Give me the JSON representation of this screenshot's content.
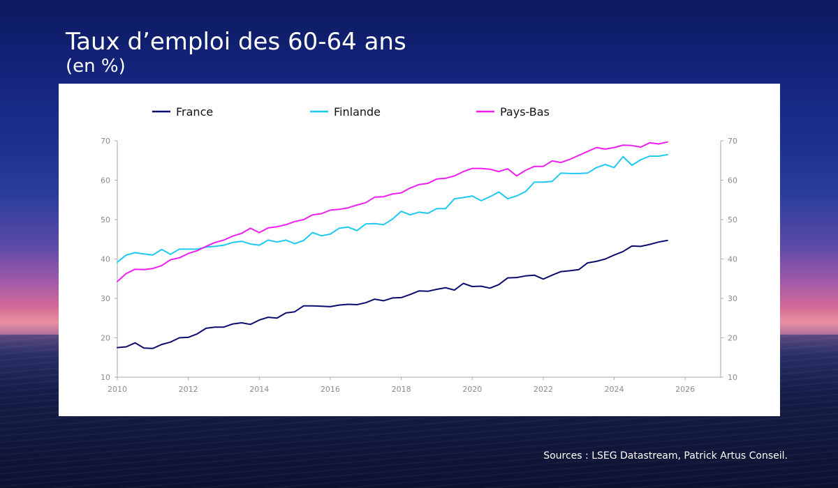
{
  "header": {
    "title": "Taux d’emploi des 60-64 ans",
    "subtitle": "(en %)"
  },
  "footer": {
    "source": "Sources : LSEG Datastream, Patrick Artus Conseil."
  },
  "colors": {
    "France": "#0b0b6e",
    "Finlande": "#1ec8f0",
    "Pays-Bas": "#ee1ef0",
    "axis": "#aaaaaa"
  },
  "chart_data": {
    "type": "line",
    "title": "",
    "xlabel": "",
    "ylabel": "",
    "xlim": [
      2010,
      2027
    ],
    "ylim": [
      10,
      70
    ],
    "x_ticks": [
      2010,
      2012,
      2014,
      2016,
      2018,
      2020,
      2022,
      2024,
      2026
    ],
    "y_ticks": [
      10,
      20,
      30,
      40,
      50,
      60,
      70
    ],
    "y_axis_right": true,
    "grid": false,
    "legend_position": "top",
    "x": [
      2010.0,
      2010.25,
      2010.5,
      2010.75,
      2011.0,
      2011.25,
      2011.5,
      2011.75,
      2012.0,
      2012.25,
      2012.5,
      2012.75,
      2013.0,
      2013.25,
      2013.5,
      2013.75,
      2014.0,
      2014.25,
      2014.5,
      2014.75,
      2015.0,
      2015.25,
      2015.5,
      2015.75,
      2016.0,
      2016.25,
      2016.5,
      2016.75,
      2017.0,
      2017.25,
      2017.5,
      2017.75,
      2018.0,
      2018.25,
      2018.5,
      2018.75,
      2019.0,
      2019.25,
      2019.5,
      2019.75,
      2020.0,
      2020.25,
      2020.5,
      2020.75,
      2021.0,
      2021.25,
      2021.5,
      2021.75,
      2022.0,
      2022.25,
      2022.5,
      2022.75,
      2023.0,
      2023.25,
      2023.5,
      2023.75,
      2024.0,
      2024.25,
      2024.5,
      2024.75,
      2025.0,
      2025.25,
      2025.5
    ],
    "series": [
      {
        "name": "France",
        "values": [
          17.5,
          17.7,
          18.7,
          17.4,
          17.3,
          18.3,
          18.9,
          20.0,
          20.1,
          21.0,
          22.4,
          22.7,
          22.7,
          23.5,
          23.8,
          23.4,
          24.5,
          25.2,
          25.0,
          26.3,
          26.6,
          28.1,
          28.1,
          28.0,
          27.9,
          28.3,
          28.5,
          28.4,
          28.9,
          29.8,
          29.4,
          30.1,
          30.2,
          31.0,
          31.9,
          31.8,
          32.3,
          32.7,
          32.1,
          33.8,
          33.0,
          33.1,
          32.6,
          33.5,
          35.2,
          35.3,
          35.7,
          35.9,
          34.9,
          35.9,
          36.8,
          37.0,
          37.3,
          39.0,
          39.4,
          40.0,
          41.0,
          41.9,
          43.3,
          43.2,
          43.7,
          44.3,
          44.7
        ]
      },
      {
        "name": "Finlande",
        "values": [
          39.2,
          41.0,
          41.6,
          41.3,
          41.0,
          42.4,
          41.2,
          42.5,
          42.5,
          42.5,
          43.0,
          43.2,
          43.5,
          44.2,
          44.5,
          43.8,
          43.5,
          44.8,
          44.3,
          44.8,
          43.9,
          44.7,
          46.7,
          45.9,
          46.3,
          47.8,
          48.1,
          47.2,
          48.9,
          49.0,
          48.7,
          50.1,
          52.1,
          51.2,
          51.9,
          51.6,
          52.8,
          52.8,
          55.3,
          55.6,
          56.0,
          54.8,
          55.8,
          57.0,
          55.3,
          56.0,
          57.1,
          59.5,
          59.5,
          59.7,
          61.8,
          61.7,
          61.7,
          61.8,
          63.2,
          64.0,
          63.2,
          66.0,
          63.8,
          65.2,
          66.1,
          66.1,
          66.5
        ]
      },
      {
        "name": "Pays-Bas",
        "values": [
          34.3,
          36.3,
          37.4,
          37.3,
          37.6,
          38.3,
          39.8,
          40.3,
          41.4,
          42.1,
          43.2,
          44.2,
          44.8,
          45.8,
          46.5,
          47.8,
          46.7,
          47.9,
          48.2,
          48.7,
          49.5,
          50.0,
          51.2,
          51.5,
          52.4,
          52.6,
          53.0,
          53.7,
          54.3,
          55.7,
          55.8,
          56.5,
          56.8,
          58.0,
          58.9,
          59.2,
          60.3,
          60.5,
          61.1,
          62.2,
          63.0,
          63.0,
          62.8,
          62.2,
          62.9,
          61.1,
          62.5,
          63.5,
          63.5,
          64.9,
          64.5,
          65.3,
          66.3,
          67.3,
          68.3,
          67.9,
          68.3,
          68.9,
          68.8,
          68.4,
          69.5,
          69.2,
          69.7
        ]
      }
    ]
  }
}
